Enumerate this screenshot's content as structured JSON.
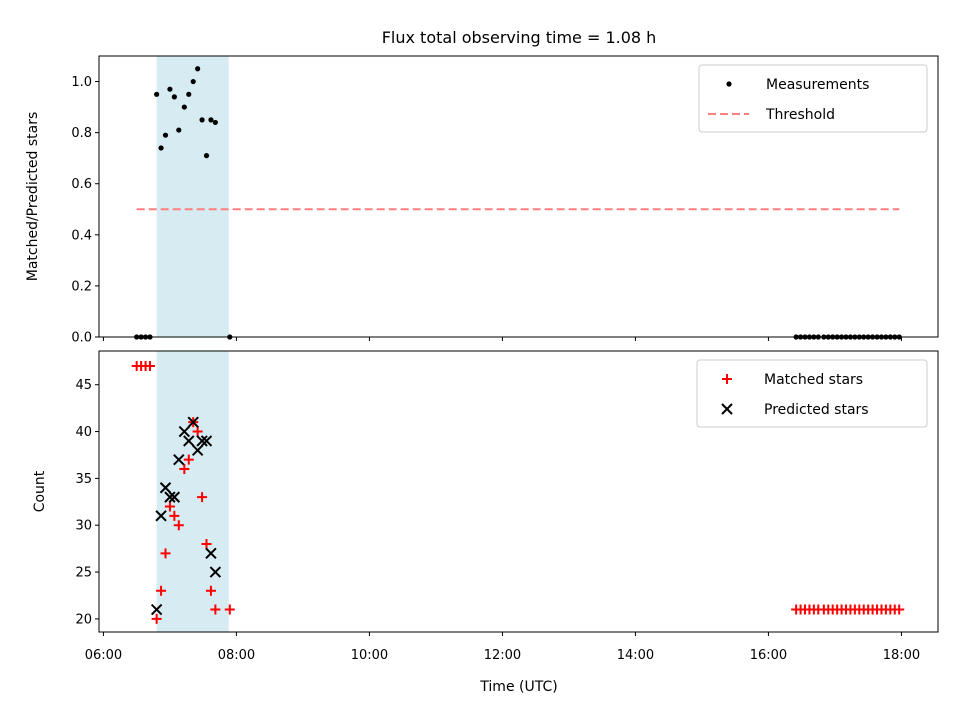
{
  "chart_data": {
    "title": "Flux total observing time = 1.08 h",
    "shared_xlabel": "Time (UTC)",
    "x_ticks": [
      "06:00",
      "08:00",
      "10:00",
      "12:00",
      "14:00",
      "16:00",
      "18:00"
    ],
    "xlim": [
      "05:56",
      "18:33"
    ],
    "shaded_interval": {
      "start": "06:48",
      "end": "07:53",
      "color": "#add8e6"
    },
    "panels": [
      {
        "type": "scatter",
        "ylabel": "Matched/Predicted stars",
        "ylim": [
          0.0,
          1.1
        ],
        "y_ticks": [
          "0.0",
          "0.2",
          "0.4",
          "0.6",
          "0.8",
          "1.0"
        ],
        "legend_position": "top-right",
        "series": [
          {
            "name": "Measurements",
            "marker": "dot",
            "color": "#000000",
            "points": [
              [
                "06:30",
                0.0
              ],
              [
                "06:34",
                0.0
              ],
              [
                "06:38",
                0.0
              ],
              [
                "06:42",
                0.0
              ],
              [
                "06:48",
                0.95
              ],
              [
                "06:52",
                0.74
              ],
              [
                "06:56",
                0.79
              ],
              [
                "07:00",
                0.97
              ],
              [
                "07:04",
                0.94
              ],
              [
                "07:08",
                0.81
              ],
              [
                "07:13",
                0.9
              ],
              [
                "07:17",
                0.95
              ],
              [
                "07:21",
                1.0
              ],
              [
                "07:25",
                1.05
              ],
              [
                "07:29",
                0.85
              ],
              [
                "07:33",
                0.71
              ],
              [
                "07:37",
                0.85
              ],
              [
                "07:41",
                0.84
              ],
              [
                "07:54",
                0.0
              ],
              [
                "16:25",
                0.0
              ],
              [
                "16:29",
                0.0
              ],
              [
                "16:33",
                0.0
              ],
              [
                "16:37",
                0.0
              ],
              [
                "16:41",
                0.0
              ],
              [
                "16:45",
                0.0
              ],
              [
                "16:50",
                0.0
              ],
              [
                "16:54",
                0.0
              ],
              [
                "16:58",
                0.0
              ],
              [
                "17:02",
                0.0
              ],
              [
                "17:06",
                0.0
              ],
              [
                "17:10",
                0.0
              ],
              [
                "17:14",
                0.0
              ],
              [
                "17:18",
                0.0
              ],
              [
                "17:22",
                0.0
              ],
              [
                "17:26",
                0.0
              ],
              [
                "17:30",
                0.0
              ],
              [
                "17:34",
                0.0
              ],
              [
                "17:38",
                0.0
              ],
              [
                "17:42",
                0.0
              ],
              [
                "17:46",
                0.0
              ],
              [
                "17:50",
                0.0
              ],
              [
                "17:54",
                0.0
              ],
              [
                "17:58",
                0.0
              ]
            ]
          },
          {
            "name": "Threshold",
            "type": "line",
            "style": "dashed",
            "color": "#ff7f7f",
            "points": [
              [
                "06:30",
                0.5
              ],
              [
                "17:58",
                0.5
              ]
            ]
          }
        ]
      },
      {
        "type": "scatter",
        "ylabel": "Count",
        "ylim": [
          18.6,
          48.6
        ],
        "y_ticks": [
          "20",
          "25",
          "30",
          "35",
          "40",
          "45"
        ],
        "legend_position": "top-right",
        "series": [
          {
            "name": "Matched stars",
            "marker": "plus",
            "color": "#ff0000",
            "points": [
              [
                "06:30",
                47
              ],
              [
                "06:34",
                47
              ],
              [
                "06:38",
                47
              ],
              [
                "06:42",
                47
              ],
              [
                "06:48",
                20
              ],
              [
                "06:52",
                23
              ],
              [
                "06:56",
                27
              ],
              [
                "07:00",
                32
              ],
              [
                "07:04",
                31
              ],
              [
                "07:08",
                30
              ],
              [
                "07:13",
                36
              ],
              [
                "07:17",
                37
              ],
              [
                "07:21",
                41
              ],
              [
                "07:25",
                40
              ],
              [
                "07:29",
                33
              ],
              [
                "07:33",
                28
              ],
              [
                "07:37",
                23
              ],
              [
                "07:41",
                21
              ],
              [
                "07:54",
                21
              ],
              [
                "16:25",
                21
              ],
              [
                "16:29",
                21
              ],
              [
                "16:33",
                21
              ],
              [
                "16:37",
                21
              ],
              [
                "16:41",
                21
              ],
              [
                "16:45",
                21
              ],
              [
                "16:50",
                21
              ],
              [
                "16:54",
                21
              ],
              [
                "16:58",
                21
              ],
              [
                "17:02",
                21
              ],
              [
                "17:06",
                21
              ],
              [
                "17:10",
                21
              ],
              [
                "17:14",
                21
              ],
              [
                "17:18",
                21
              ],
              [
                "17:22",
                21
              ],
              [
                "17:26",
                21
              ],
              [
                "17:30",
                21
              ],
              [
                "17:34",
                21
              ],
              [
                "17:38",
                21
              ],
              [
                "17:42",
                21
              ],
              [
                "17:46",
                21
              ],
              [
                "17:50",
                21
              ],
              [
                "17:54",
                21
              ],
              [
                "17:58",
                21
              ]
            ]
          },
          {
            "name": "Predicted stars",
            "marker": "x",
            "color": "#000000",
            "points": [
              [
                "06:48",
                21
              ],
              [
                "06:52",
                31
              ],
              [
                "06:56",
                34
              ],
              [
                "07:00",
                33
              ],
              [
                "07:04",
                33
              ],
              [
                "07:08",
                37
              ],
              [
                "07:13",
                40
              ],
              [
                "07:17",
                39
              ],
              [
                "07:21",
                41
              ],
              [
                "07:25",
                38
              ],
              [
                "07:29",
                39
              ],
              [
                "07:33",
                39
              ],
              [
                "07:37",
                27
              ],
              [
                "07:41",
                25
              ]
            ]
          }
        ]
      }
    ]
  }
}
